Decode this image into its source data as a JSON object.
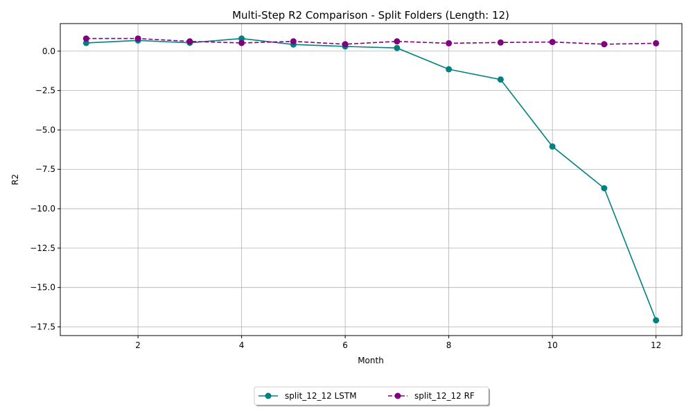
{
  "chart_data": {
    "type": "line",
    "title": "Multi-Step R2 Comparison - Split Folders (Length: 12)",
    "xlabel": "Month",
    "ylabel": "R2",
    "xlim": [
      0.5,
      12.5
    ],
    "ylim": [
      -18.05,
      1.75
    ],
    "x_ticks": [
      2,
      4,
      6,
      8,
      10,
      12
    ],
    "y_ticks": [
      0.0,
      -2.5,
      -5.0,
      -7.5,
      -10.0,
      -12.5,
      -15.0,
      -17.5
    ],
    "y_tick_labels": [
      "0.0",
      "−2.5",
      "−5.0",
      "−7.5",
      "−10.0",
      "−12.5",
      "−15.0",
      "−17.5"
    ],
    "grid": true,
    "legend_position": "bottom-center",
    "x": [
      1,
      2,
      3,
      4,
      5,
      6,
      7,
      8,
      9,
      10,
      11,
      12
    ],
    "series": [
      {
        "name": "split_12_12 LSTM",
        "color": "#008080",
        "linestyle": "solid",
        "marker": "circle",
        "values": [
          0.52,
          0.68,
          0.53,
          0.8,
          0.42,
          0.3,
          0.2,
          -1.15,
          -1.8,
          -6.05,
          -8.7,
          -17.08
        ]
      },
      {
        "name": "split_12_12 RF",
        "color": "#800080",
        "linestyle": "dashed",
        "marker": "circle",
        "values": [
          0.8,
          0.8,
          0.62,
          0.52,
          0.62,
          0.44,
          0.62,
          0.5,
          0.55,
          0.58,
          0.44,
          0.5
        ]
      }
    ]
  }
}
